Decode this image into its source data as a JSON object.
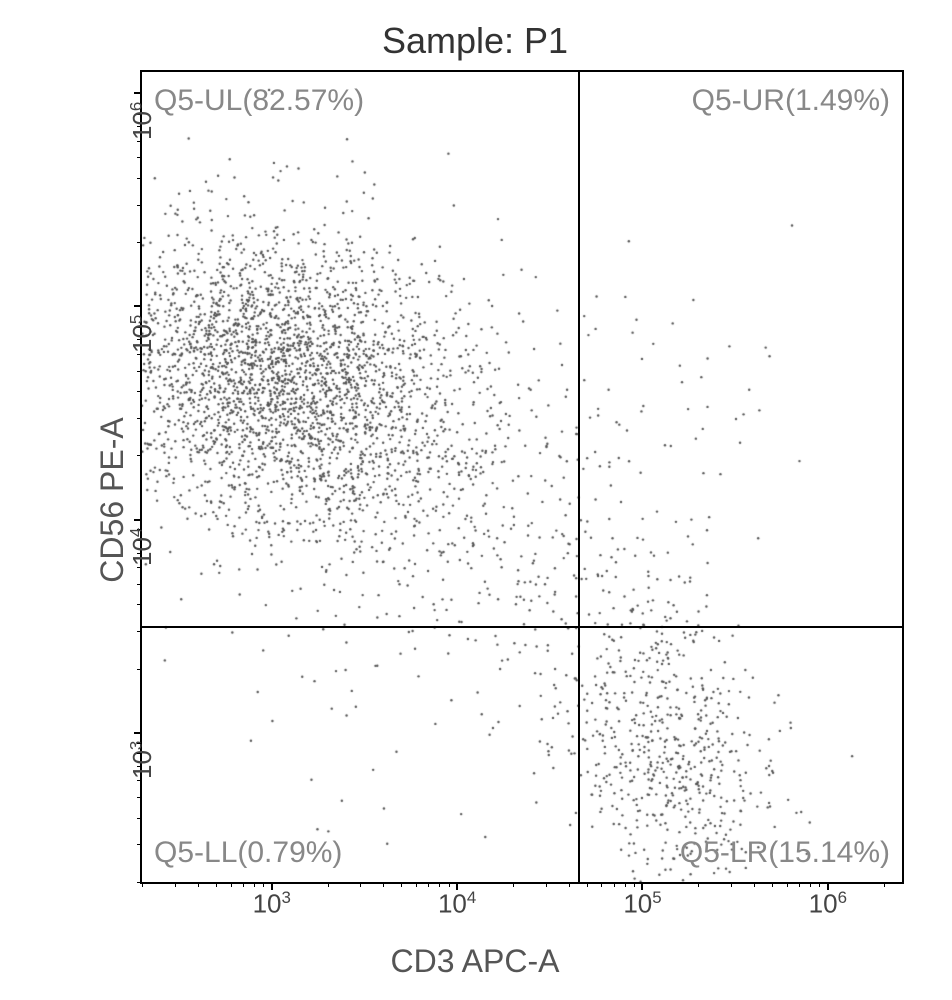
{
  "chart": {
    "type": "scatter",
    "title": "Sample: P1",
    "x_axis": {
      "label": "CD3 APC-A",
      "scale": "log",
      "min_exp": 2.3,
      "max_exp": 6.4,
      "ticks": [
        3,
        4,
        5,
        6
      ],
      "tick_labels": [
        "10³",
        "10⁴",
        "10⁵",
        "10⁶"
      ]
    },
    "y_axis": {
      "label": "CD56 PE-A",
      "scale": "log",
      "min_exp": 2.3,
      "max_exp": 6.1,
      "ticks": [
        3,
        4,
        5,
        6
      ],
      "tick_labels": [
        "10³",
        "10⁴",
        "10⁵",
        "10⁶"
      ]
    },
    "quadrants": {
      "x_divider_exp": 4.65,
      "y_divider_exp": 3.5,
      "UL": {
        "label": "Q5-UL(82.57%)",
        "percent": 82.57
      },
      "UR": {
        "label": "Q5-UR(1.49%)",
        "percent": 1.49
      },
      "LL": {
        "label": "Q5-LL(0.79%)",
        "percent": 0.79
      },
      "LR": {
        "label": "Q5-LR(15.14%)",
        "percent": 15.14
      }
    },
    "clusters": [
      {
        "cx_exp": 3.0,
        "cy_exp": 4.65,
        "sx": 0.45,
        "sy": 0.35,
        "n": 2600,
        "corr": -0.1
      },
      {
        "cx_exp": 3.6,
        "cy_exp": 4.4,
        "sx": 0.5,
        "sy": 0.45,
        "n": 550,
        "corr": -0.3
      },
      {
        "cx_exp": 5.1,
        "cy_exp": 4.35,
        "sx": 0.35,
        "sy": 0.45,
        "n": 60,
        "corr": 0.0
      },
      {
        "cx_exp": 5.15,
        "cy_exp": 2.9,
        "sx": 0.3,
        "sy": 0.35,
        "n": 570,
        "corr": -0.2
      },
      {
        "cx_exp": 4.75,
        "cy_exp": 3.55,
        "sx": 0.35,
        "sy": 0.45,
        "n": 120,
        "corr": -0.3
      },
      {
        "cx_exp": 3.4,
        "cy_exp": 3.1,
        "sx": 0.7,
        "sy": 0.4,
        "n": 40,
        "corr": 0.0
      },
      {
        "cx_exp": 4.1,
        "cy_exp": 4.0,
        "sx": 0.5,
        "sy": 0.5,
        "n": 130,
        "corr": -0.2
      }
    ],
    "point_color": "#555555",
    "point_radius": 1.2,
    "background_color": "#ffffff",
    "border_color": "#000000",
    "text_color": "#888888",
    "title_fontsize": 36,
    "label_fontsize": 32,
    "tick_fontsize": 26,
    "quadrant_fontsize": 30
  }
}
